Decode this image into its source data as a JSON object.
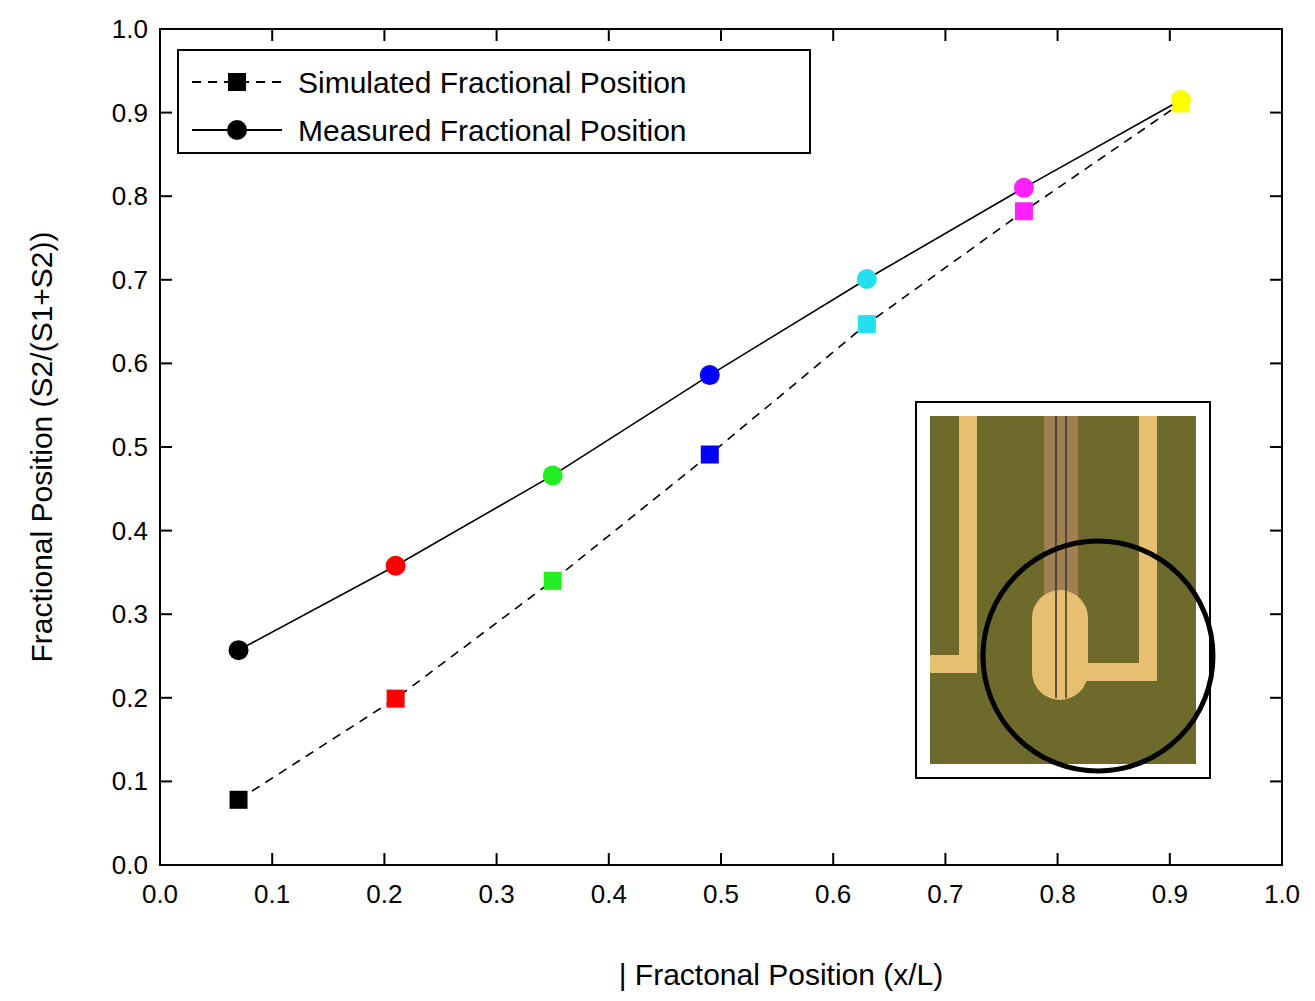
{
  "chart_data": {
    "type": "line",
    "x_label": "| Fractonal Position (x/L)",
    "y_label": "Fractional Position (S2/(S1+S2))",
    "x": [
      0.07,
      0.21,
      0.35,
      0.49,
      0.63,
      0.77,
      0.91
    ],
    "series": [
      {
        "name": "Simulated Fractional Position",
        "color": "#000000",
        "marker": "square",
        "line_style": "dashed",
        "colors": [
          "#000000",
          "#ff0000",
          "#22ee22",
          "#0000ff",
          "#22e0f0",
          "#ff22ff",
          "#ffff00"
        ],
        "values": [
          0.078,
          0.199,
          0.34,
          0.491,
          0.647,
          0.782,
          0.911
        ]
      },
      {
        "name": "Measured Fractional Position",
        "color": "#000000",
        "marker": "circle",
        "line_style": "solid",
        "colors": [
          "#000000",
          "#ff0000",
          "#22ee22",
          "#0000ff",
          "#22e0f0",
          "#ff22ff",
          "#ffff00"
        ],
        "values": [
          0.257,
          0.358,
          0.466,
          0.586,
          0.701,
          0.81,
          0.915
        ]
      }
    ],
    "xlim": [
      0,
      1
    ],
    "ylim": [
      0,
      1
    ],
    "xticks": [
      {
        "value": 0,
        "label": "0.0"
      },
      0.1,
      0.2,
      0.3,
      0.4,
      0.5,
      0.6,
      0.7,
      0.8,
      0.9,
      {
        "value": 1,
        "label": "1.0"
      }
    ],
    "yticks": [
      {
        "value": 0,
        "label": "0.0"
      },
      0.1,
      0.2,
      0.3,
      0.4,
      0.5,
      0.6,
      0.7,
      0.8,
      0.9,
      {
        "value": 1,
        "label": "1.0"
      }
    ],
    "grid": false,
    "legend": "upper left"
  }
}
